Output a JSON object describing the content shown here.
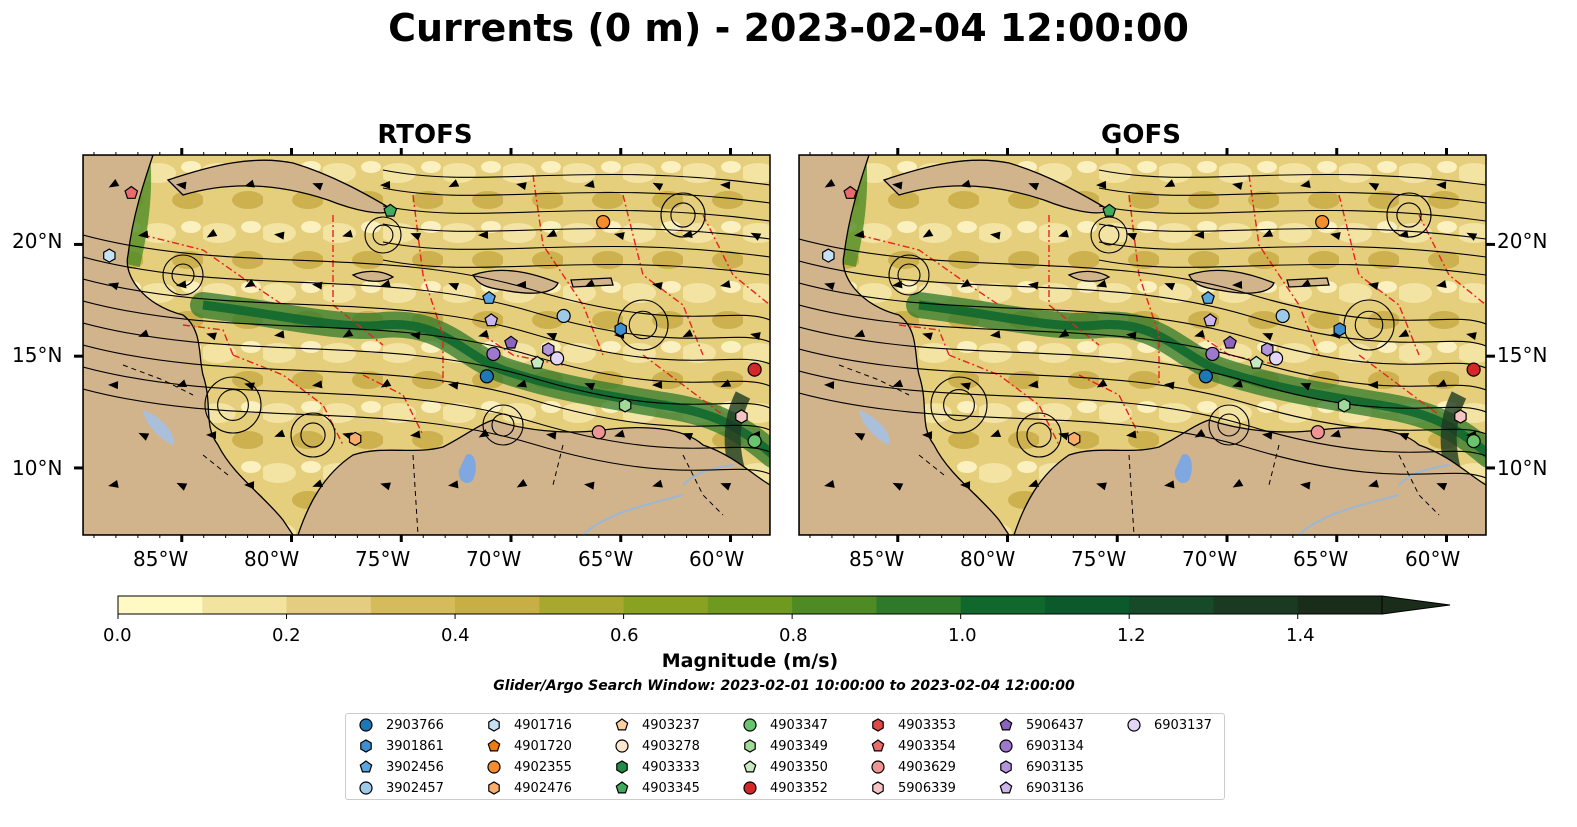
{
  "title": "Currents (0 m) - 2023-02-04 12:00:00",
  "panels": [
    {
      "title": "RTOFS"
    },
    {
      "title": "GOFS"
    }
  ],
  "axes": {
    "x_ticks": [
      "85°W",
      "80°W",
      "75°W",
      "70°W",
      "65°W",
      "60°W"
    ],
    "x_values": [
      -85,
      -80,
      -75,
      -70,
      -65,
      -60
    ],
    "y_ticks": [
      "20°N",
      "15°N",
      "10°N"
    ],
    "y_values": [
      20,
      15,
      10
    ],
    "lon_range": [
      -89.5,
      -58.2
    ],
    "lat_range": [
      7,
      24
    ]
  },
  "colorbar": {
    "label": "Magnitude (m/s)",
    "ticks": [
      "0.0",
      "0.2",
      "0.4",
      "0.6",
      "0.8",
      "1.0",
      "1.2",
      "1.4"
    ],
    "tick_values": [
      0.0,
      0.2,
      0.4,
      0.6,
      0.8,
      1.0,
      1.2,
      1.4
    ],
    "range": [
      0.0,
      1.5
    ],
    "extend": "max",
    "colors": [
      "#fff9c4",
      "#f2e3a0",
      "#e4cd80",
      "#d6bb5c",
      "#c7ae45",
      "#a8a82e",
      "#8aa222",
      "#6f9a1f",
      "#4f8b24",
      "#2f7a2a",
      "#11682d",
      "#0c5a2c",
      "#164a28",
      "#1b3a22",
      "#1a2c1a"
    ]
  },
  "search_window": "Glider/Argo Search Window: 2023-02-01 10:00:00 to 2023-02-04 12:00:00",
  "legend": [
    {
      "id": "2903766",
      "color": "#1f77b4",
      "shape": "circle"
    },
    {
      "id": "3901861",
      "color": "#3d8fcf",
      "shape": "hexagon"
    },
    {
      "id": "3902456",
      "color": "#5aa6e0",
      "shape": "pentagon"
    },
    {
      "id": "3902457",
      "color": "#9ecae9",
      "shape": "circle"
    },
    {
      "id": "4901716",
      "color": "#c6e1f5",
      "shape": "hexagon"
    },
    {
      "id": "4901720",
      "color": "#f07c10",
      "shape": "pentagon"
    },
    {
      "id": "4902355",
      "color": "#f58d2c",
      "shape": "circle"
    },
    {
      "id": "4902476",
      "color": "#fbad6b",
      "shape": "hexagon"
    },
    {
      "id": "4903237",
      "color": "#fdd0a2",
      "shape": "pentagon"
    },
    {
      "id": "4903278",
      "color": "#fde6cc",
      "shape": "circle"
    },
    {
      "id": "4903333",
      "color": "#238b45",
      "shape": "hexagon"
    },
    {
      "id": "4903345",
      "color": "#41ab5d",
      "shape": "pentagon"
    },
    {
      "id": "4903347",
      "color": "#6ac46f",
      "shape": "circle"
    },
    {
      "id": "4903349",
      "color": "#a1d99b",
      "shape": "hexagon"
    },
    {
      "id": "4903350",
      "color": "#c7e9c0",
      "shape": "pentagon"
    },
    {
      "id": "4903352",
      "color": "#d62728",
      "shape": "circle"
    },
    {
      "id": "4903353",
      "color": "#e04747",
      "shape": "hexagon"
    },
    {
      "id": "4903354",
      "color": "#ea6b6b",
      "shape": "pentagon"
    },
    {
      "id": "4903629",
      "color": "#f09393",
      "shape": "circle"
    },
    {
      "id": "5906339",
      "color": "#f7c4c4",
      "shape": "hexagon"
    },
    {
      "id": "5906437",
      "color": "#8c63bd",
      "shape": "pentagon"
    },
    {
      "id": "6903134",
      "color": "#9d78cc",
      "shape": "circle"
    },
    {
      "id": "6903135",
      "color": "#b395dc",
      "shape": "hexagon"
    },
    {
      "id": "6903136",
      "color": "#cbb5ea",
      "shape": "pentagon"
    },
    {
      "id": "6903137",
      "color": "#e3d5f5",
      "shape": "circle"
    }
  ],
  "markers": [
    {
      "id": "4903354",
      "lon": -87.3,
      "lat": 22.3
    },
    {
      "id": "4901716",
      "lon": -88.3,
      "lat": 19.5
    },
    {
      "id": "4903345",
      "lon": -75.5,
      "lat": 21.5
    },
    {
      "id": "4902355",
      "lon": -65.8,
      "lat": 21.0
    },
    {
      "id": "3902456",
      "lon": -71.0,
      "lat": 17.6
    },
    {
      "id": "3902457",
      "lon": -67.6,
      "lat": 16.8
    },
    {
      "id": "3901861",
      "lon": -65.0,
      "lat": 16.2
    },
    {
      "id": "6903136",
      "lon": -70.9,
      "lat": 16.6
    },
    {
      "id": "5906437",
      "lon": -70.0,
      "lat": 15.6
    },
    {
      "id": "6903134",
      "lon": -70.8,
      "lat": 15.1
    },
    {
      "id": "6903135",
      "lon": -68.3,
      "lat": 15.3
    },
    {
      "id": "6903137",
      "lon": -67.9,
      "lat": 14.9
    },
    {
      "id": "4903350",
      "lon": -68.8,
      "lat": 14.7
    },
    {
      "id": "2903766",
      "lon": -71.1,
      "lat": 14.1
    },
    {
      "id": "4903352",
      "lon": -58.9,
      "lat": 14.4
    },
    {
      "id": "4903349",
      "lon": -64.8,
      "lat": 12.8
    },
    {
      "id": "5906339",
      "lon": -59.5,
      "lat": 12.3
    },
    {
      "id": "4903629",
      "lon": -66.0,
      "lat": 11.6
    },
    {
      "id": "4903347",
      "lon": -58.9,
      "lat": 11.2
    },
    {
      "id": "4902476",
      "lon": -77.1,
      "lat": 11.3
    }
  ]
}
